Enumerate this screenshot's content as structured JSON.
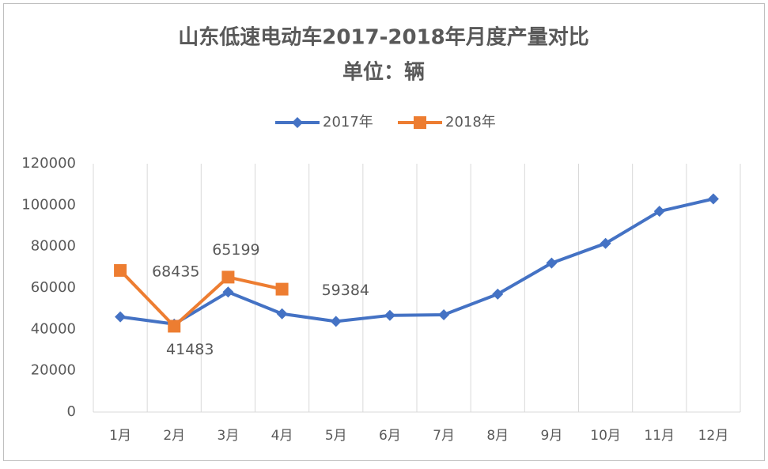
{
  "chart_data": {
    "type": "line",
    "title": "山东低速电动车2017-2018年月度产量对比",
    "subtitle": "单位：辆",
    "categories": [
      "1月",
      "2月",
      "3月",
      "4月",
      "5月",
      "6月",
      "7月",
      "8月",
      "9月",
      "10月",
      "11月",
      "12月"
    ],
    "series": [
      {
        "name": "2017年",
        "color": "#4472c4",
        "marker": "diamond",
        "values": [
          46000,
          42500,
          58000,
          47500,
          43800,
          46700,
          47000,
          57000,
          72000,
          81500,
          97000,
          103000
        ]
      },
      {
        "name": "2018年",
        "color": "#ed7d31",
        "marker": "square",
        "data_labels": true,
        "values": [
          68435,
          41483,
          65199,
          59384,
          null,
          null,
          null,
          null,
          null,
          null,
          null,
          null
        ]
      }
    ],
    "ylim": [
      0,
      120000
    ],
    "yticks": [
      0,
      20000,
      40000,
      60000,
      80000,
      100000,
      120000
    ],
    "grid": "vertical",
    "legend": "top"
  }
}
